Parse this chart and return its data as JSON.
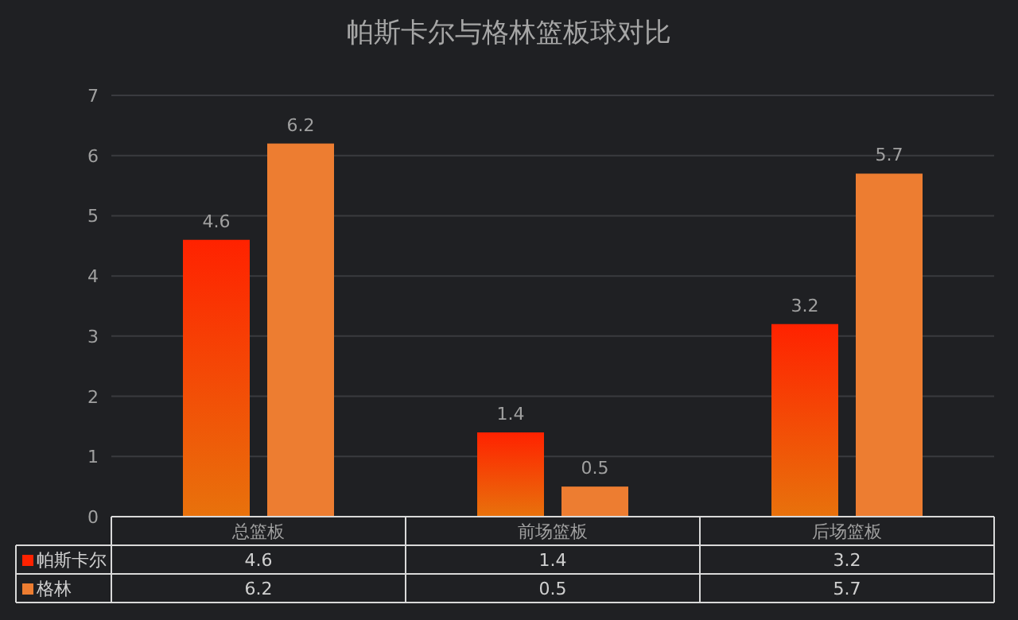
{
  "chart_data": {
    "type": "bar",
    "title": "帕斯卡尔与格林篮板球对比",
    "categories": [
      "总篮板",
      "前场篮板",
      "后场篮板"
    ],
    "series": [
      {
        "name": "帕斯卡尔",
        "color": "#ff2200",
        "values": [
          4.6,
          1.4,
          3.2
        ],
        "value_labels": [
          "4.6",
          "1.4",
          "3.2"
        ]
      },
      {
        "name": "格林",
        "color": "#ed7d31",
        "values": [
          6.2,
          0.5,
          5.7
        ],
        "value_labels": [
          "6.2",
          "0.5",
          "5.7"
        ]
      }
    ],
    "ylim": [
      0,
      7
    ],
    "yticks": [
      0,
      1,
      2,
      3,
      4,
      5,
      6,
      7
    ],
    "grid": "y",
    "legend": "bottom",
    "annotations": [
      "4.6",
      "1.4",
      "3.2",
      "6.2",
      "0.5",
      "5.7"
    ]
  }
}
